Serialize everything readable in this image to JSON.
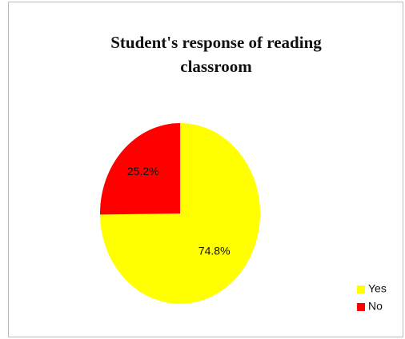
{
  "chart_data": {
    "type": "pie",
    "title": "Student's response of reading classroom",
    "categories": [
      "Yes",
      "No"
    ],
    "values": [
      74.8,
      25.2
    ],
    "value_labels": [
      "74.8%",
      "25.2%"
    ],
    "colors": [
      "#ffff00",
      "#ff0000"
    ],
    "legend": "lower right"
  }
}
